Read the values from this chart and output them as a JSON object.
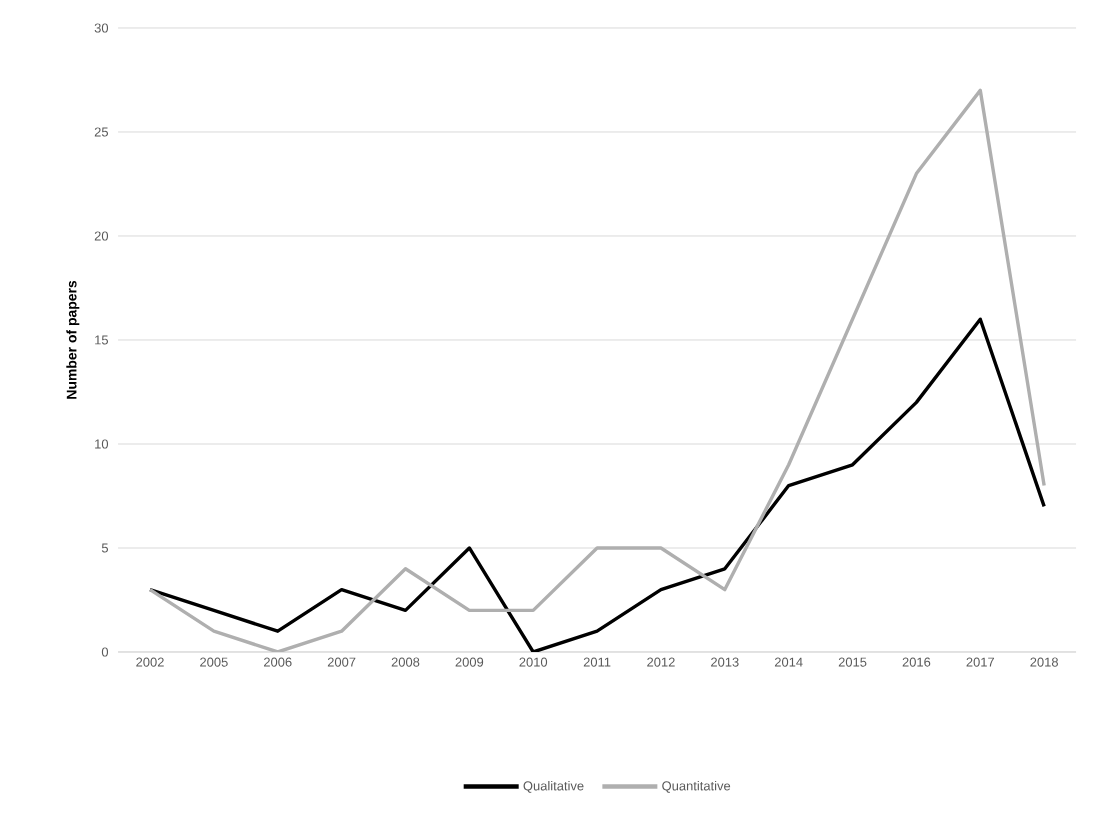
{
  "chart_data": {
    "type": "line",
    "ylabel": "Number of papers",
    "categories": [
      "2002",
      "2005",
      "2006",
      "2007",
      "2008",
      "2009",
      "2010",
      "2011",
      "2012",
      "2013",
      "2014",
      "2015",
      "2016",
      "2017",
      "2018"
    ],
    "series": [
      {
        "name": "Qualitative",
        "color": "#000000",
        "values": [
          3,
          2,
          1,
          3,
          2,
          5,
          0,
          1,
          3,
          4,
          8,
          9,
          12,
          16,
          7
        ]
      },
      {
        "name": "Quantitative",
        "color": "#afafaf",
        "values": [
          3,
          1,
          0,
          1,
          4,
          2,
          2,
          5,
          5,
          3,
          9,
          16,
          23,
          27,
          8
        ]
      }
    ],
    "ylim": [
      0,
      30
    ],
    "yticks": [
      0,
      5,
      10,
      15,
      20,
      25,
      30
    ],
    "grid": "y",
    "legend": "bottom",
    "marker": "none",
    "line_style": "solid"
  }
}
